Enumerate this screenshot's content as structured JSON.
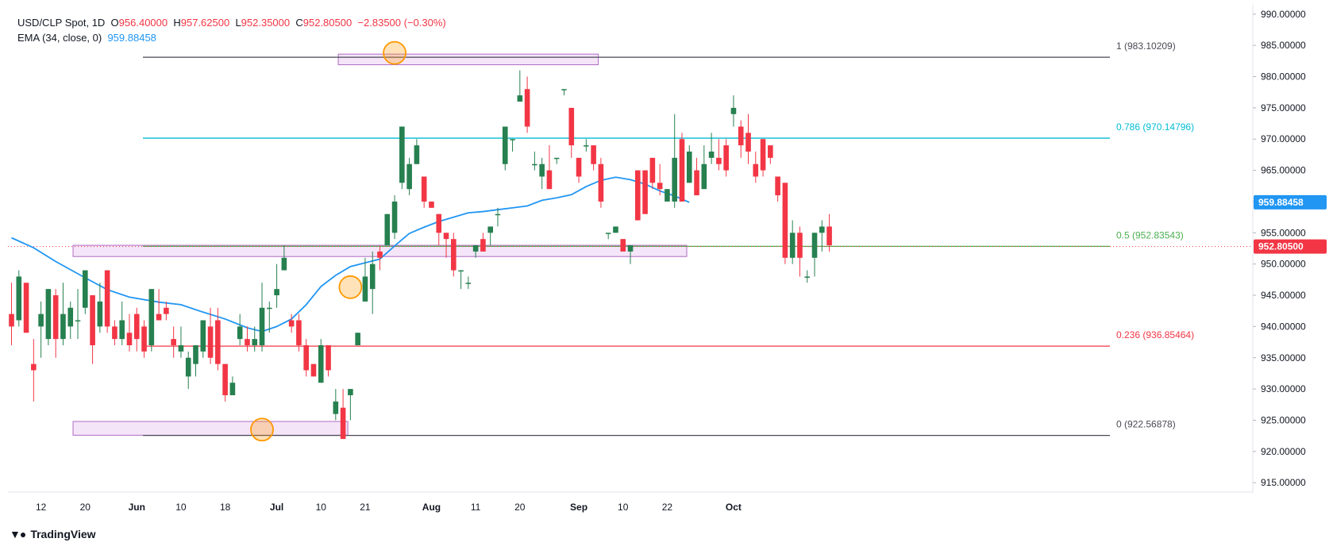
{
  "header": {
    "symbol": "USD/CLP Spot, 1D",
    "open_label": "O",
    "open": "956.40000",
    "high_label": "H",
    "high": "957.62500",
    "low_label": "L",
    "low": "952.35000",
    "close_label": "C",
    "close": "952.80500",
    "change": "−2.83500 (−0.30%)",
    "ema_label": "EMA (34, close, 0)",
    "ema_value": "959.88458"
  },
  "brand": {
    "name": "TradingView"
  },
  "colors": {
    "up": "#26804f",
    "down": "#f23645",
    "ema": "#2196f3",
    "fib_0_1": "#4a4a55",
    "fib_0786": "#00bcd4",
    "fib_05": "#4caf50",
    "fib_0236": "#f23645",
    "zone_fill": "#f3e0f7",
    "zone_stroke": "#b06cc4",
    "marker": "#ff9800"
  },
  "chart_data": {
    "type": "candlestick",
    "ylim": [
      913.5,
      991.5
    ],
    "y_ticks": [
      "915.00000",
      "920.00000",
      "925.00000",
      "930.00000",
      "935.00000",
      "940.00000",
      "945.00000",
      "950.00000",
      "955.00000",
      "960.00000",
      "965.00000",
      "970.00000",
      "975.00000",
      "980.00000",
      "985.00000",
      "990.00000"
    ],
    "x_ticks": [
      {
        "label": "12",
        "idx": 4,
        "bold": false
      },
      {
        "label": "20",
        "idx": 10,
        "bold": false
      },
      {
        "label": "Jun",
        "idx": 17,
        "bold": true
      },
      {
        "label": "10",
        "idx": 23,
        "bold": false
      },
      {
        "label": "18",
        "idx": 29,
        "bold": false
      },
      {
        "label": "Jul",
        "idx": 36,
        "bold": true
      },
      {
        "label": "10",
        "idx": 42,
        "bold": false
      },
      {
        "label": "21",
        "idx": 48,
        "bold": false
      },
      {
        "label": "Aug",
        "idx": 57,
        "bold": true
      },
      {
        "label": "11",
        "idx": 63,
        "bold": false
      },
      {
        "label": "20",
        "idx": 69,
        "bold": false
      },
      {
        "label": "Sep",
        "idx": 77,
        "bold": true
      },
      {
        "label": "10",
        "idx": 83,
        "bold": false
      },
      {
        "label": "22",
        "idx": 89,
        "bold": false
      },
      {
        "label": "Oct",
        "idx": 98,
        "bold": true
      }
    ],
    "candles": [
      [
        942,
        940,
        947,
        937
      ],
      [
        941,
        948,
        949,
        940
      ],
      [
        947,
        939,
        947,
        939
      ],
      [
        934,
        933,
        938,
        928
      ],
      [
        940,
        942,
        944,
        935
      ],
      [
        938,
        946,
        946,
        937
      ],
      [
        945,
        938,
        946,
        935
      ],
      [
        938,
        942,
        947,
        937
      ],
      [
        940,
        943,
        944,
        938
      ],
      [
        941,
        941,
        946,
        938
      ],
      [
        943,
        949,
        949,
        942
      ],
      [
        945,
        937,
        945,
        934
      ],
      [
        940,
        944,
        947,
        939
      ],
      [
        949,
        940,
        949,
        939
      ],
      [
        940,
        938,
        941,
        937
      ],
      [
        938,
        941,
        944,
        937
      ],
      [
        939,
        937,
        942,
        936
      ],
      [
        942,
        938,
        943,
        936
      ],
      [
        940,
        936,
        941,
        935
      ],
      [
        937,
        946,
        946,
        936
      ],
      [
        942,
        941,
        946,
        941
      ],
      [
        943,
        942,
        944,
        941
      ],
      [
        938,
        937,
        940,
        935
      ],
      [
        936,
        937,
        940,
        935
      ],
      [
        932,
        935,
        936,
        930
      ],
      [
        934,
        937,
        937,
        932
      ],
      [
        936,
        941,
        941,
        935
      ],
      [
        940,
        935,
        943,
        934
      ],
      [
        941,
        934,
        943,
        933
      ],
      [
        934,
        929,
        934,
        928
      ],
      [
        929,
        931,
        932,
        929
      ],
      [
        938,
        940,
        942,
        937
      ],
      [
        938,
        937,
        940,
        936
      ],
      [
        937,
        938,
        940,
        936
      ],
      [
        937,
        943,
        947,
        936
      ],
      [
        943,
        943,
        944,
        939
      ],
      [
        945,
        946,
        950,
        943
      ],
      [
        949,
        951,
        953,
        949
      ],
      [
        941,
        940,
        942,
        939
      ],
      [
        941,
        937,
        942,
        936
      ],
      [
        937,
        933,
        938,
        932
      ],
      [
        934,
        932,
        934,
        932
      ],
      [
        931,
        937,
        938,
        931
      ],
      [
        937,
        933,
        937,
        932
      ],
      [
        926,
        928,
        930,
        925
      ],
      [
        927,
        922,
        930,
        922
      ],
      [
        929,
        930,
        930,
        925
      ],
      [
        937,
        939,
        939,
        937
      ],
      [
        944,
        948,
        951,
        944
      ],
      [
        946,
        950,
        952,
        942
      ],
      [
        952,
        951,
        953,
        949
      ],
      [
        953,
        958,
        958,
        953
      ],
      [
        955,
        960,
        961,
        954
      ],
      [
        963,
        972,
        972,
        962
      ],
      [
        962,
        966,
        967,
        961
      ],
      [
        966,
        969,
        970,
        966
      ],
      [
        964,
        960,
        963,
        959
      ],
      [
        960,
        959,
        960,
        959
      ],
      [
        958,
        955,
        958,
        953
      ],
      [
        955,
        954,
        955,
        951
      ],
      [
        954,
        949,
        955,
        948
      ],
      [
        949,
        949,
        949,
        946
      ],
      [
        947,
        947,
        948,
        946
      ],
      [
        952,
        953,
        953,
        951
      ],
      [
        954,
        952,
        955,
        953
      ],
      [
        955,
        956,
        956,
        953
      ],
      [
        958,
        958,
        959,
        956
      ],
      [
        966,
        972,
        972,
        965
      ],
      [
        970,
        970,
        970,
        968
      ],
      [
        976,
        977,
        981,
        976
      ],
      [
        978,
        972,
        980,
        971
      ],
      [
        966,
        966,
        968,
        965
      ],
      [
        964,
        966,
        967,
        962
      ],
      [
        965,
        962,
        969,
        962
      ],
      [
        967,
        967,
        967,
        966
      ],
      [
        978,
        978,
        978,
        977
      ],
      [
        975,
        969,
        975,
        967
      ],
      [
        967,
        964,
        967,
        963
      ],
      [
        969,
        969,
        970,
        968
      ],
      [
        969,
        966,
        969,
        965
      ],
      [
        966,
        960,
        967,
        959
      ],
      [
        955,
        955,
        955,
        954
      ],
      [
        955,
        956,
        956,
        955
      ],
      [
        954,
        952,
        954,
        952
      ],
      [
        952,
        953,
        953,
        950
      ],
      [
        965,
        957,
        965,
        957
      ],
      [
        965,
        958,
        965,
        958
      ],
      [
        967,
        963,
        966,
        962
      ],
      [
        963,
        962,
        966,
        961
      ],
      [
        960,
        962,
        962,
        961
      ],
      [
        960,
        967,
        974,
        959
      ],
      [
        970,
        960,
        971,
        960
      ],
      [
        963,
        968,
        969,
        963
      ],
      [
        965,
        961,
        967,
        961
      ],
      [
        962,
        966,
        969,
        962
      ],
      [
        967,
        968,
        971,
        966
      ],
      [
        967,
        966,
        970,
        965
      ],
      [
        969,
        965,
        970,
        964
      ],
      [
        974,
        975,
        977,
        972
      ],
      [
        972,
        969,
        973,
        967
      ],
      [
        971,
        968,
        974,
        966
      ],
      [
        966,
        964,
        968,
        963
      ],
      [
        970,
        965,
        970,
        964
      ],
      [
        969,
        967,
        969,
        966
      ],
      [
        964,
        961,
        964,
        960
      ],
      [
        963,
        951,
        963,
        950
      ],
      [
        951,
        955,
        957,
        950
      ],
      [
        955,
        951,
        956,
        948
      ],
      [
        948,
        948,
        949,
        947
      ],
      [
        951,
        955,
        955,
        948
      ],
      [
        955,
        956,
        957,
        952
      ],
      [
        956,
        953,
        958,
        952
      ]
    ],
    "ema": [
      [
        0,
        954.2
      ],
      [
        3,
        952.6
      ],
      [
        6,
        950.4
      ],
      [
        10,
        947.8
      ],
      [
        13,
        945.9
      ],
      [
        16,
        944.7
      ],
      [
        20,
        943.9
      ],
      [
        23,
        943.5
      ],
      [
        26,
        942.3
      ],
      [
        29,
        941.2
      ],
      [
        32,
        939.8
      ],
      [
        34,
        939.2
      ],
      [
        36,
        940.0
      ],
      [
        38,
        941.2
      ],
      [
        40,
        943.5
      ],
      [
        42,
        946.4
      ],
      [
        44,
        948.2
      ],
      [
        46,
        949.6
      ],
      [
        48,
        950.2
      ],
      [
        50,
        950.8
      ],
      [
        52,
        952.9
      ],
      [
        54,
        954.9
      ],
      [
        56,
        955.9
      ],
      [
        58,
        956.8
      ],
      [
        60,
        957.5
      ],
      [
        62,
        958.2
      ],
      [
        64,
        958.4
      ],
      [
        66,
        958.7
      ],
      [
        68,
        959.0
      ],
      [
        70,
        959.3
      ],
      [
        72,
        960.2
      ],
      [
        74,
        960.6
      ],
      [
        76,
        961.1
      ],
      [
        78,
        962.4
      ],
      [
        80,
        963.4
      ],
      [
        82,
        963.9
      ],
      [
        84,
        963.5
      ],
      [
        86,
        962.8
      ],
      [
        88,
        961.7
      ],
      [
        90,
        960.9
      ],
      [
        92,
        959.88
      ]
    ],
    "fib_levels": [
      {
        "label": "1 (983.10209)",
        "value": 983.10209,
        "color": "#4a4a55"
      },
      {
        "label": "0.786 (970.14796)",
        "value": 970.14796,
        "color": "#00bcd4"
      },
      {
        "label": "0.5 (952.83543)",
        "value": 952.83543,
        "color": "#4caf50"
      },
      {
        "label": "0.236 (936.85464)",
        "value": 936.85464,
        "color": "#f23645"
      },
      {
        "label": "0 (922.56878)",
        "value": 922.56878,
        "color": "#4a4a55"
      }
    ],
    "zones": [
      {
        "from_idx": 45,
        "to_idx": 79,
        "top": 983.6,
        "bottom": 981.9
      },
      {
        "from_idx": 9,
        "to_idx": 91,
        "top": 953.0,
        "bottom": 951.2
      },
      {
        "from_idx": 9,
        "to_idx": 45,
        "top": 924.8,
        "bottom": 922.6
      }
    ],
    "markers": [
      {
        "idx": 52,
        "value": 983.8
      },
      {
        "idx": 46,
        "value": 946.3
      },
      {
        "idx": 34,
        "value": 923.5
      }
    ],
    "current_price": "952.80500",
    "ema_tag": "959.88458"
  }
}
